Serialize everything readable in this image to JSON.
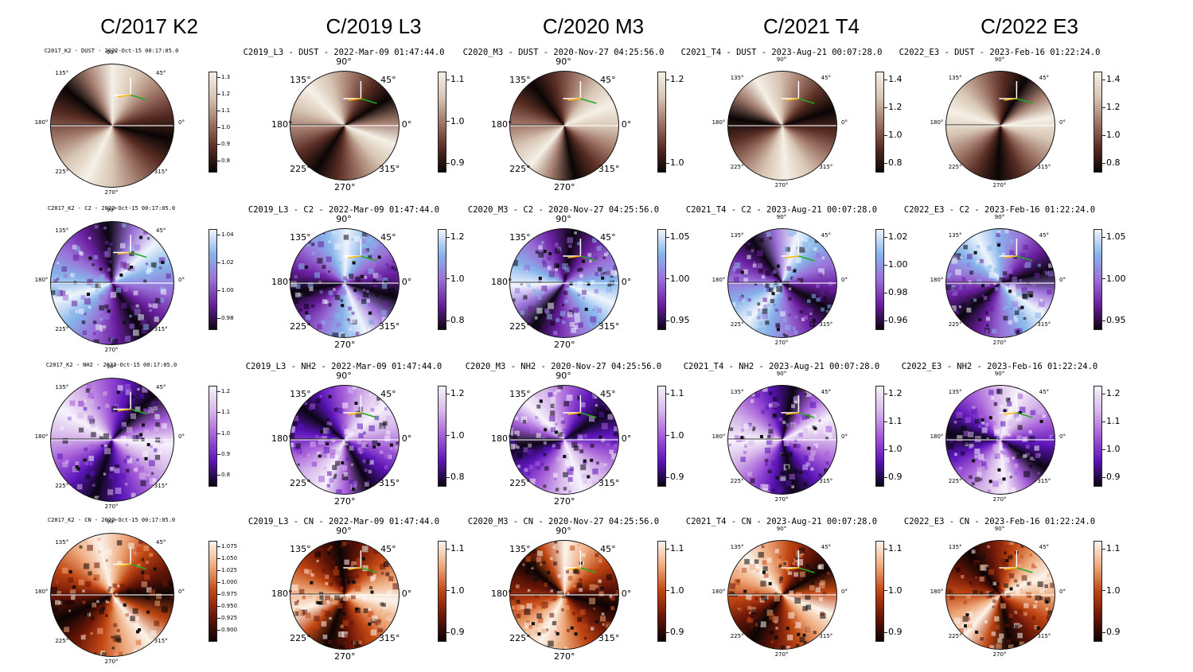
{
  "columns": [
    {
      "title": "C/2017 K2",
      "panels": [
        {
          "title": "C2017_K2 - DUST - 2022-Oct-15 00:17:05.0",
          "cmap": "dust",
          "cbar_ticks": [
            "1.3",
            "1.2",
            "1.1",
            "1.0",
            "0.9",
            "0.8"
          ]
        },
        {
          "title": "C2017_K2 - C2 - 2022-Oct-15 00:17:05.0",
          "cmap": "blue",
          "cbar_ticks": [
            "1.04",
            "1.02",
            "1.00",
            "0.98"
          ]
        },
        {
          "title": "C2017_K2 - NH2 - 2022-Oct-15 00:17:05.0",
          "cmap": "purple",
          "cbar_ticks": [
            "1.2",
            "1.1",
            "1.0",
            "0.9",
            "0.8"
          ]
        },
        {
          "title": "C2017_K2 - CN - 2022-Oct-15 00:17:05.0",
          "cmap": "orange",
          "cbar_ticks": [
            "1.075",
            "1.050",
            "1.025",
            "1.000",
            "0.975",
            "0.950",
            "0.925",
            "0.900"
          ]
        }
      ]
    },
    {
      "title": "C/2019 L3",
      "panels": [
        {
          "title": "C2019_L3 - DUST - 2022-Mar-09 01:47:44.0",
          "cmap": "dust",
          "cbar_ticks": [
            "1.1",
            "1.0",
            "0.9"
          ]
        },
        {
          "title": "C2019_L3 - C2 - 2022-Mar-09 01:47:44.0",
          "cmap": "blue",
          "cbar_ticks": [
            "1.2",
            "1.0",
            "0.8"
          ]
        },
        {
          "title": "C2019_L3 - NH2 - 2022-Mar-09 01:47:44.0",
          "cmap": "purple",
          "cbar_ticks": [
            "1.2",
            "1.0",
            "0.8"
          ]
        },
        {
          "title": "C2019_L3 - CN - 2022-Mar-09 01:47:44.0",
          "cmap": "orange",
          "cbar_ticks": [
            "1.1",
            "1.0",
            "0.9"
          ]
        }
      ]
    },
    {
      "title": "C/2020 M3",
      "panels": [
        {
          "title": "C2020_M3 - DUST - 2020-Nov-27 04:25:56.0",
          "cmap": "dust",
          "cbar_ticks": [
            "1.2",
            "1.0"
          ]
        },
        {
          "title": "C2020_M3 - C2 - 2020-Nov-27 04:25:56.0",
          "cmap": "blue",
          "cbar_ticks": [
            "1.05",
            "1.00",
            "0.95"
          ]
        },
        {
          "title": "C2020_M3 - NH2 - 2020-Nov-27 04:25:56.0",
          "cmap": "purple",
          "cbar_ticks": [
            "1.1",
            "1.0",
            "0.9"
          ]
        },
        {
          "title": "C2020_M3 - CN - 2020-Nov-27 04:25:56.0",
          "cmap": "orange",
          "cbar_ticks": [
            "1.1",
            "1.0",
            "0.9"
          ]
        }
      ]
    },
    {
      "title": "C/2021 T4",
      "panels": [
        {
          "title": "C2021_T4 - DUST - 2023-Aug-21 00:07:28.0",
          "cmap": "dust",
          "cbar_ticks": [
            "1.4",
            "1.2",
            "1.0",
            "0.8"
          ]
        },
        {
          "title": "C2021_T4 - C2 - 2023-Aug-21 00:07:28.0",
          "cmap": "blue",
          "cbar_ticks": [
            "1.02",
            "1.00",
            "0.98",
            "0.96"
          ]
        },
        {
          "title": "C2021_T4 - NH2 - 2023-Aug-21 00:07:28.0",
          "cmap": "purple",
          "cbar_ticks": [
            "1.2",
            "1.1",
            "1.0",
            "0.9"
          ]
        },
        {
          "title": "C2021_T4 - CN - 2023-Aug-21 00:07:28.0",
          "cmap": "orange",
          "cbar_ticks": [
            "1.1",
            "1.0",
            "0.9"
          ]
        }
      ]
    },
    {
      "title": "C/2022 E3",
      "panels": [
        {
          "title": "C2022_E3 - DUST - 2023-Feb-16 01:22:24.0",
          "cmap": "dust",
          "cbar_ticks": [
            "1.4",
            "1.2",
            "1.0",
            "0.8"
          ]
        },
        {
          "title": "C2022_E3 - C2 - 2023-Feb-16 01:22:24.0",
          "cmap": "blue",
          "cbar_ticks": [
            "1.05",
            "1.00",
            "0.95"
          ]
        },
        {
          "title": "C2022_E3 - NH2 - 2023-Feb-16 01:22:24.0",
          "cmap": "purple",
          "cbar_ticks": [
            "1.2",
            "1.1",
            "1.0",
            "0.9"
          ]
        },
        {
          "title": "C2022_E3 - CN - 2023-Feb-16 01:22:24.0",
          "cmap": "orange",
          "cbar_ticks": [
            "1.1",
            "1.0",
            "0.9"
          ]
        }
      ]
    }
  ],
  "polar_labels": [
    "90°",
    "45°",
    "0°",
    "315°",
    "270°",
    "225°",
    "180°",
    "135°"
  ],
  "colormaps": {
    "dust": [
      "#0a0505",
      "#5a2e24",
      "#a0786a",
      "#d8c6b4",
      "#f5f0e6"
    ],
    "blue": [
      "#0a0510",
      "#6a1fa0",
      "#9a70d8",
      "#86b4ea",
      "#eef4fc"
    ],
    "purple": [
      "#0a0512",
      "#5b14b8",
      "#a45cd8",
      "#d6b6ea",
      "#f6f2fb"
    ],
    "orange": [
      "#0b0404",
      "#6a1608",
      "#c04512",
      "#eea87a",
      "#fbf4ec"
    ]
  },
  "arrow_colors": {
    "sun": "#ffb300",
    "velocity": "#22aa22",
    "north": "#ffffff"
  }
}
